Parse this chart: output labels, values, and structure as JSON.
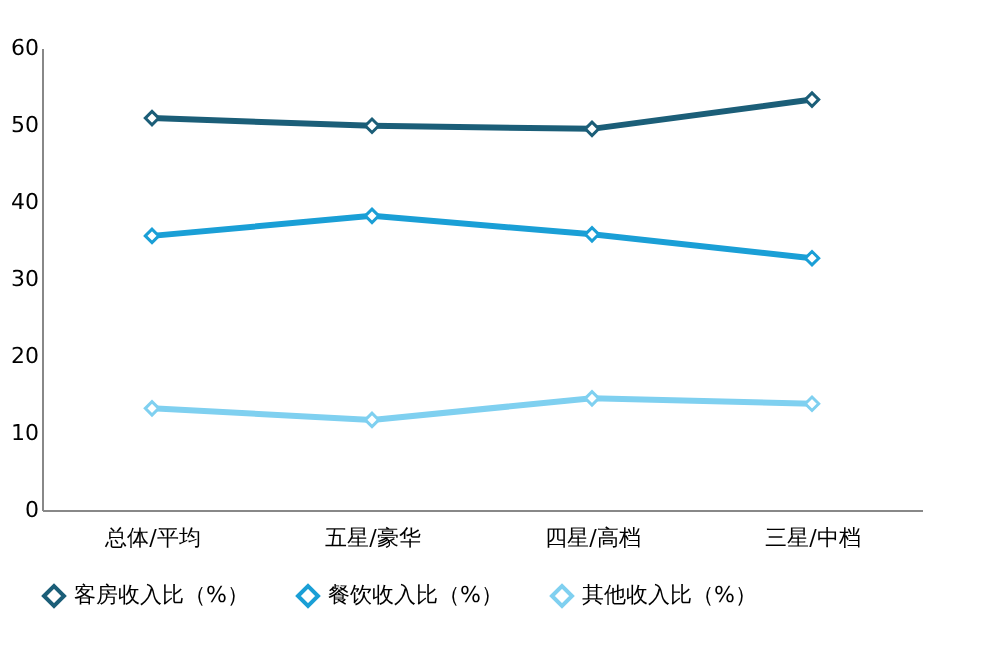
{
  "chart_data": {
    "type": "line",
    "categories": [
      "总体/平均",
      "五星/豪华",
      "四星/高档",
      "三星/中档"
    ],
    "series": [
      {
        "name": "客房收入比（%）",
        "color": "#1b5e78",
        "values": [
          50.9,
          49.9,
          49.5,
          53.3
        ]
      },
      {
        "name": "餐饮收入比（%）",
        "color": "#1a9fd6",
        "values": [
          35.6,
          38.2,
          35.8,
          32.7
        ]
      },
      {
        "name": "其他收入比（%）",
        "color": "#7fd0f0",
        "values": [
          13.2,
          11.7,
          14.5,
          13.8
        ]
      }
    ],
    "ylim": [
      0,
      60
    ],
    "yticks": [
      0,
      10,
      20,
      30,
      40,
      50,
      60
    ],
    "grid": false,
    "legend": "bottom",
    "marker": "diamond",
    "line_style": "solid"
  }
}
